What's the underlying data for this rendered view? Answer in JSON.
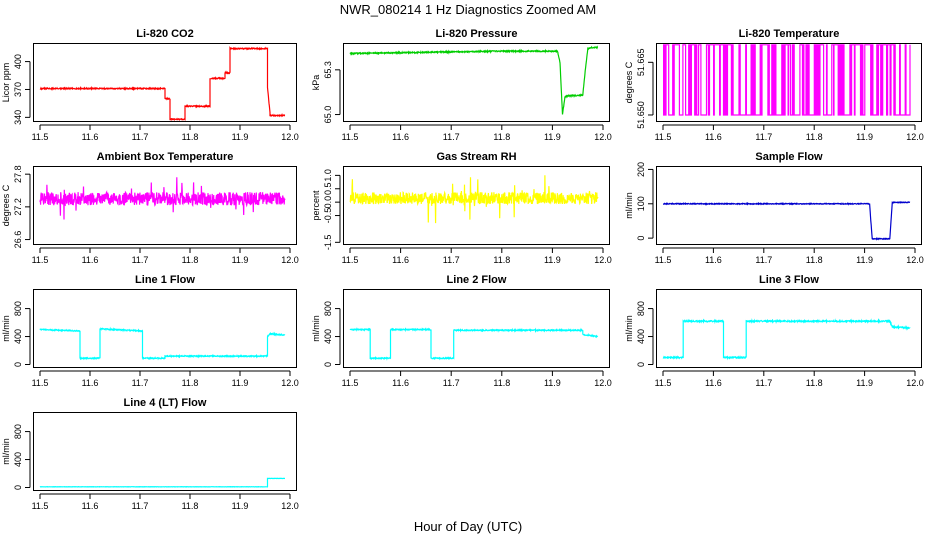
{
  "figure": {
    "title": "NWR_080214  1 Hz Diagnostics Zoomed AM",
    "xlabel": "Hour of Day (UTC)"
  },
  "chart_data": [
    {
      "type": "line",
      "title": "Li-820 CO2",
      "ylabel": "Licor ppm",
      "color": "#ff0000",
      "xlim": [
        11.5,
        12.0
      ],
      "ylim": [
        335,
        420
      ],
      "yticks": [
        340,
        370,
        400
      ],
      "xticks": [
        11.5,
        11.6,
        11.7,
        11.8,
        11.9,
        12.0
      ],
      "noise": 0.6,
      "series": [
        {
          "x": [
            11.5,
            11.75,
            11.75,
            11.76,
            11.76,
            11.79,
            11.79,
            11.81,
            11.81,
            11.84,
            11.84,
            11.87,
            11.87,
            11.88,
            11.88,
            11.95,
            11.955,
            11.955,
            11.96,
            11.96,
            11.99
          ],
          "values": [
            371,
            371,
            360,
            360,
            338,
            338,
            352,
            352,
            352,
            352,
            382,
            382,
            388,
            388,
            414,
            414,
            414,
            372,
            345,
            342,
            342
          ]
        }
      ]
    },
    {
      "type": "line",
      "title": "Li-820 Pressure",
      "ylabel": "kPa",
      "color": "#00cd00",
      "xlim": [
        11.5,
        12.0
      ],
      "ylim": [
        64.95,
        65.48
      ],
      "yticks": [
        65.0,
        65.3
      ],
      "yticklabels": [
        "65.0",
        "65.3"
      ],
      "xticks": [
        11.5,
        11.6,
        11.7,
        11.8,
        11.9,
        12.0
      ],
      "noise": 0.004,
      "series": [
        {
          "x": [
            11.5,
            11.6,
            11.7,
            11.8,
            11.91,
            11.915,
            11.92,
            11.925,
            11.93,
            11.96,
            11.965,
            11.97,
            11.975,
            11.99
          ],
          "values": [
            65.41,
            65.415,
            65.42,
            65.425,
            65.425,
            65.35,
            65.0,
            65.12,
            65.125,
            65.13,
            65.3,
            65.44,
            65.45,
            65.45
          ]
        }
      ]
    },
    {
      "type": "line",
      "title": "Li-820 Temperature",
      "ylabel": "degrees C",
      "color": "#ff00ff",
      "xlim": [
        11.5,
        12.0
      ],
      "ylim": [
        51.648,
        51.6705
      ],
      "yticks": [
        51.65,
        51.665
      ],
      "yticklabels": [
        "51.650",
        "51.665"
      ],
      "xticks": [
        11.5,
        11.6,
        11.7,
        11.8,
        11.9,
        12.0
      ],
      "pattern": "binary",
      "levels": [
        51.65,
        51.67
      ],
      "series": [
        {
          "x": [],
          "values": []
        }
      ]
    },
    {
      "type": "line",
      "title": "Ambient Box Temperature",
      "ylabel": "degrees C",
      "color": "#ff00ff",
      "xlim": [
        11.5,
        12.0
      ],
      "ylim": [
        26.5,
        27.95
      ],
      "yticks": [
        26.6,
        27.2,
        27.8
      ],
      "yticklabels": [
        "26.6",
        "27.2",
        "27.8"
      ],
      "xticks": [
        11.5,
        11.6,
        11.7,
        11.8,
        11.9,
        12.0
      ],
      "noise": 0.12,
      "spikes": 0.35,
      "series": [
        {
          "x": [
            11.5,
            11.99
          ],
          "values": [
            27.35,
            27.35
          ]
        }
      ]
    },
    {
      "type": "line",
      "title": "Gas Stream RH",
      "ylabel": "percent",
      "color": "#ffff00",
      "xlim": [
        11.5,
        12.0
      ],
      "ylim": [
        -1.6,
        1.35
      ],
      "yticks": [
        -1.5,
        -0.5,
        0.0,
        0.5,
        1.0
      ],
      "yticklabels": [
        "-1.5",
        "-0.5",
        "0.0",
        "0.5",
        "1.0"
      ],
      "xticks": [
        11.5,
        11.6,
        11.7,
        11.8,
        11.9,
        12.0
      ],
      "noise": 0.22,
      "spikes": 0.9,
      "series": [
        {
          "x": [
            11.5,
            11.99
          ],
          "values": [
            0.15,
            0.15
          ]
        }
      ]
    },
    {
      "type": "line",
      "title": "Sample Flow",
      "ylabel": "ml/min",
      "color": "#0000cd",
      "xlim": [
        11.5,
        12.0
      ],
      "ylim": [
        -20,
        210
      ],
      "yticks": [
        0,
        100,
        200
      ],
      "xticks": [
        11.5,
        11.6,
        11.7,
        11.8,
        11.9,
        12.0
      ],
      "noise": 1.2,
      "series": [
        {
          "x": [
            11.5,
            11.91,
            11.915,
            11.95,
            11.955,
            11.99
          ],
          "values": [
            100,
            100,
            -2,
            -2,
            104,
            104
          ]
        }
      ]
    },
    {
      "type": "line",
      "title": "Line 1 Flow",
      "ylabel": "ml/min",
      "color": "#00ffff",
      "xlim": [
        11.5,
        12.0
      ],
      "ylim": [
        -50,
        1080
      ],
      "yticks": [
        0,
        400,
        800
      ],
      "xticks": [
        11.5,
        11.6,
        11.7,
        11.8,
        11.9,
        12.0
      ],
      "noise": 8,
      "series": [
        {
          "x": [
            11.5,
            11.58,
            11.58,
            11.62,
            11.62,
            11.705,
            11.705,
            11.75,
            11.75,
            11.955,
            11.955,
            11.96,
            11.99
          ],
          "values": [
            500,
            480,
            90,
            90,
            510,
            480,
            90,
            90,
            120,
            120,
            400,
            440,
            420
          ]
        }
      ]
    },
    {
      "type": "line",
      "title": "Line 2 Flow",
      "ylabel": "ml/min",
      "color": "#00ffff",
      "xlim": [
        11.5,
        12.0
      ],
      "ylim": [
        -50,
        1080
      ],
      "yticks": [
        0,
        400,
        800
      ],
      "xticks": [
        11.5,
        11.6,
        11.7,
        11.8,
        11.9,
        12.0
      ],
      "noise": 8,
      "series": [
        {
          "x": [
            11.5,
            11.54,
            11.54,
            11.58,
            11.58,
            11.66,
            11.66,
            11.705,
            11.705,
            11.96,
            11.96,
            11.99
          ],
          "values": [
            500,
            500,
            90,
            90,
            500,
            500,
            90,
            90,
            490,
            490,
            430,
            400
          ]
        }
      ]
    },
    {
      "type": "line",
      "title": "Line 3 Flow",
      "ylabel": "ml/min",
      "color": "#00ffff",
      "xlim": [
        11.5,
        12.0
      ],
      "ylim": [
        -50,
        1080
      ],
      "yticks": [
        0,
        400,
        800
      ],
      "xticks": [
        11.5,
        11.6,
        11.7,
        11.8,
        11.9,
        12.0
      ],
      "noise": 10,
      "series": [
        {
          "x": [
            11.5,
            11.54,
            11.54,
            11.62,
            11.62,
            11.665,
            11.665,
            11.95,
            11.955,
            11.99
          ],
          "values": [
            100,
            100,
            620,
            620,
            100,
            100,
            620,
            620,
            540,
            520
          ]
        }
      ]
    },
    {
      "type": "line",
      "title": "Line 4 (LT) Flow",
      "ylabel": "ml/min",
      "color": "#00ffff",
      "xlim": [
        11.5,
        12.0
      ],
      "ylim": [
        -50,
        1080
      ],
      "yticks": [
        0,
        400,
        800
      ],
      "xticks": [
        11.5,
        11.6,
        11.7,
        11.8,
        11.9,
        12.0
      ],
      "noise": 1.5,
      "series": [
        {
          "x": [
            11.5,
            11.955,
            11.955,
            11.99
          ],
          "values": [
            10,
            10,
            130,
            130
          ]
        }
      ]
    }
  ]
}
